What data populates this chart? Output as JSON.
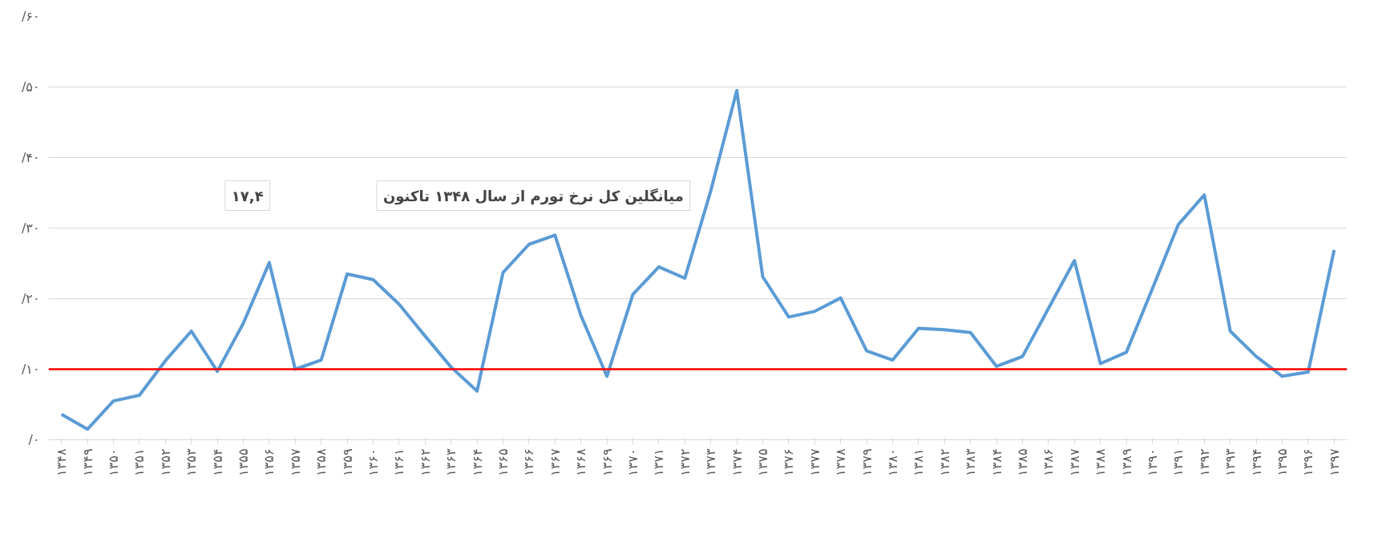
{
  "chart_data": {
    "type": "line",
    "categories": [
      "۱۳۴۸",
      "۱۳۴۹",
      "۱۳۵۰",
      "۱۳۵۱",
      "۱۳۵۲",
      "۱۳۵۳",
      "۱۳۵۴",
      "۱۳۵۵",
      "۱۳۵۶",
      "۱۳۵۷",
      "۱۳۵۸",
      "۱۳۵۹",
      "۱۳۶۰",
      "۱۳۶۱",
      "۱۳۶۲",
      "۱۳۶۳",
      "۱۳۶۴",
      "۱۳۶۵",
      "۱۳۶۶",
      "۱۳۶۷",
      "۱۳۶۸",
      "۱۳۶۹",
      "۱۳۷۰",
      "۱۳۷۱",
      "۱۳۷۲",
      "۱۳۷۳",
      "۱۳۷۴",
      "۱۳۷۵",
      "۱۳۷۶",
      "۱۳۷۷",
      "۱۳۷۸",
      "۱۳۷۹",
      "۱۳۸۰",
      "۱۳۸۱",
      "۱۳۸۲",
      "۱۳۸۳",
      "۱۳۸۴",
      "۱۳۸۵",
      "۱۳۸۶",
      "۱۳۸۷",
      "۱۳۸۸",
      "۱۳۸۹",
      "۱۳۹۰",
      "۱۳۹۱",
      "۱۳۹۲",
      "۱۳۹۳",
      "۱۳۹۴",
      "۱۳۹۵",
      "۱۳۹۶",
      "۱۳۹۷"
    ],
    "series": [
      {
        "color": "#5b9bd5",
        "values": [
          3.6,
          1.5,
          5.5,
          6.3,
          11.2,
          15.4,
          9.7,
          16.5,
          25.1,
          10.0,
          11.3,
          23.5,
          22.7,
          19.2,
          14.7,
          10.3,
          6.9,
          23.7,
          27.7,
          29.0,
          17.6,
          9.0,
          20.6,
          24.5,
          22.9,
          35.3,
          49.5,
          23.1,
          17.4,
          18.2,
          20.1,
          12.6,
          11.3,
          15.8,
          15.6,
          15.2,
          10.4,
          11.8,
          18.6,
          25.4,
          10.8,
          12.4,
          21.4,
          30.5,
          34.7,
          15.4,
          11.8,
          9.0,
          9.6,
          26.9
        ]
      }
    ],
    "ylim": [
      0,
      60
    ],
    "yticks": [
      {
        "value": 0,
        "label": "/۰"
      },
      {
        "value": 10,
        "label": "/۱۰"
      },
      {
        "value": 20,
        "label": "/۲۰"
      },
      {
        "value": 30,
        "label": "/۳۰"
      },
      {
        "value": 40,
        "label": "/۴۰"
      },
      {
        "value": 50,
        "label": "/۵۰"
      },
      {
        "value": 60,
        "label": "/۶۰"
      }
    ],
    "grid": "y",
    "marker": "none",
    "line_style": "solid",
    "ref_lines": [
      {
        "axis": "y",
        "value": 10,
        "color": "#ff0000"
      }
    ],
    "annotations": [
      "میانگلین کل نرخ تورم از سال ۱۳۴۸ تاکنون",
      "۱۷,۴"
    ]
  }
}
